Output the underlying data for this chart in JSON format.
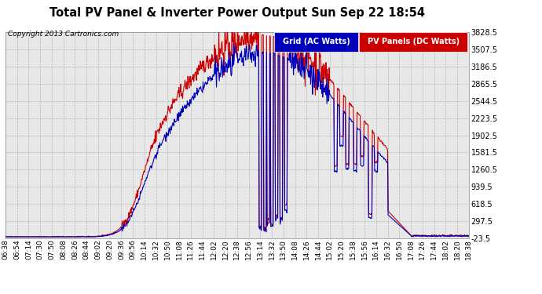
{
  "title": "Total PV Panel & Inverter Power Output Sun Sep 22 18:54",
  "copyright": "Copyright 2013 Cartronics.com",
  "legend_labels": [
    "Grid (AC Watts)",
    "PV Panels (DC Watts)"
  ],
  "grid_line_color": "#0000bb",
  "pv_line_color": "#cc0000",
  "bg_color": "#ffffff",
  "plot_bg_color": "#e8e8e8",
  "ymin": -23.5,
  "ymax": 3828.5,
  "yticks": [
    -23.5,
    297.5,
    618.5,
    939.5,
    1260.5,
    1581.5,
    1902.5,
    2223.5,
    2544.5,
    2865.5,
    3186.5,
    3507.5,
    3828.5
  ],
  "xtick_labels": [
    "06:38",
    "06:54",
    "07:14",
    "07:30",
    "07:50",
    "08:08",
    "08:26",
    "08:44",
    "09:02",
    "09:20",
    "09:36",
    "09:56",
    "10:14",
    "10:32",
    "10:50",
    "11:08",
    "11:26",
    "11:44",
    "12:02",
    "12:20",
    "12:38",
    "12:56",
    "13:14",
    "13:32",
    "13:50",
    "14:08",
    "14:26",
    "14:44",
    "15:02",
    "15:20",
    "15:38",
    "15:56",
    "16:14",
    "16:32",
    "16:50",
    "17:08",
    "17:26",
    "17:44",
    "18:02",
    "18:20",
    "18:38"
  ],
  "line_width": 0.8,
  "title_fontsize": 10.5,
  "copyright_fontsize": 6.5,
  "tick_fontsize": 7,
  "legend_fontsize": 7
}
